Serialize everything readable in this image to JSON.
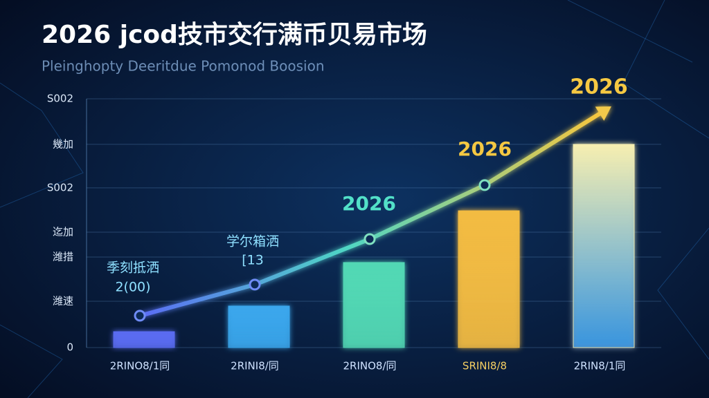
{
  "chart_data": {
    "type": "bar",
    "title": "2026 jcod技市交行满币贝易市场",
    "subtitle": "Pleinghopty Deeritdue Pomonod Boosion",
    "categories": [
      "2RINO8/1同",
      "2RINI8/同",
      "2RINO8/同",
      "SRINI8/8",
      "2RIN8/1同"
    ],
    "series": [
      {
        "type": "bar",
        "colors": [
          "#5a6cf2",
          "#3aa6ec",
          "#52d8b4",
          "#f2bb42",
          "#f6eeb0"
        ],
        "values": [
          6.4,
          16.7,
          34.2,
          55,
          81.7
        ]
      },
      {
        "type": "line",
        "color": "#f2c94c",
        "values": [
          12.8,
          25.3,
          43.6,
          65.3,
          94
        ]
      }
    ],
    "ylim": [
      0,
      100
    ],
    "yticks": [
      {
        "value": 0,
        "label": "0"
      },
      {
        "value": 18.6,
        "label": "潍速"
      },
      {
        "value": 36.4,
        "label": "潍措"
      },
      {
        "value": 46.4,
        "label": "迄加"
      },
      {
        "value": 64.2,
        "label": "S002"
      },
      {
        "value": 81.7,
        "label": "幾加"
      },
      {
        "value": 100,
        "label": "S002"
      }
    ],
    "grid": true,
    "annotations": [
      {
        "text": "季刻抵洒"
      },
      {
        "text": "2(00)"
      },
      {
        "text": "学尔箱洒"
      },
      {
        "text": "[13"
      },
      {
        "text": "2026"
      },
      {
        "text": "2026"
      },
      {
        "text": "2026"
      }
    ]
  }
}
